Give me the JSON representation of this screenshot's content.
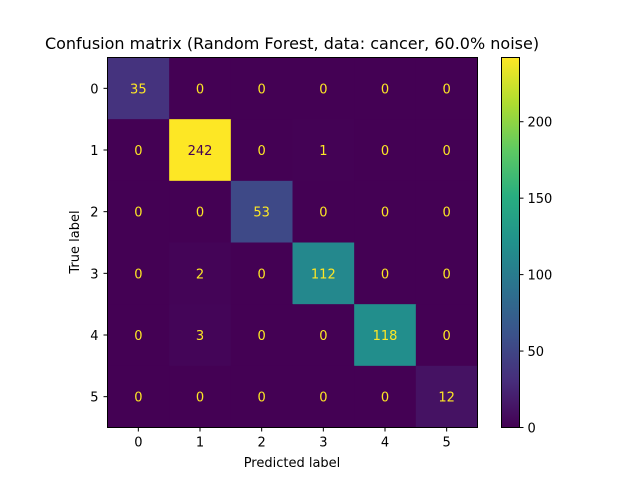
{
  "chart_data": {
    "type": "heatmap",
    "title": "Confusion matrix (Random Forest, data: cancer, 60.0% noise)",
    "xlabel": "Predicted label",
    "ylabel": "True label",
    "x_categories": [
      "0",
      "1",
      "2",
      "3",
      "4",
      "5"
    ],
    "y_categories": [
      "0",
      "1",
      "2",
      "3",
      "4",
      "5"
    ],
    "values": [
      [
        35,
        0,
        0,
        0,
        0,
        0
      ],
      [
        0,
        242,
        0,
        1,
        0,
        0
      ],
      [
        0,
        0,
        53,
        0,
        0,
        0
      ],
      [
        0,
        2,
        0,
        112,
        0,
        0
      ],
      [
        0,
        3,
        0,
        0,
        118,
        0
      ],
      [
        0,
        0,
        0,
        0,
        0,
        12
      ]
    ],
    "colormap": "viridis",
    "colorbar": {
      "range": [
        0,
        242
      ],
      "ticks": [
        0,
        50,
        100,
        150,
        200
      ]
    },
    "annotation_colors": {
      "light": "#fde725",
      "dark": "#440154"
    },
    "grid": false
  }
}
